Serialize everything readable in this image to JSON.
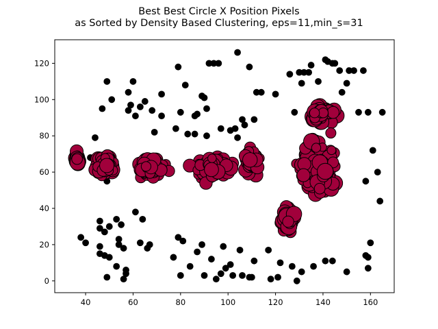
{
  "chart_data": {
    "type": "scatter",
    "title": "Best Best Circle X Position Pixels",
    "subtitle": "as Sorted by Density Based Clustering, eps=11,min_s=31",
    "xlabel": "",
    "ylabel": "",
    "xlim": [
      27,
      170
    ],
    "ylim": [
      -6.5,
      133
    ],
    "xticks": [
      40,
      60,
      80,
      100,
      120,
      140,
      160
    ],
    "yticks": [
      0,
      20,
      40,
      60,
      80,
      100,
      120
    ],
    "grid": false,
    "colors": {
      "cluster": "#a1003b",
      "noise": "#000000",
      "edge": "#000000"
    },
    "series": [
      {
        "role": "noise",
        "points": [
          [
            38,
            24
          ],
          [
            40,
            21
          ],
          [
            42,
            68
          ],
          [
            43,
            60
          ],
          [
            44,
            79
          ],
          [
            45,
            62
          ],
          [
            46,
            29
          ],
          [
            46,
            33
          ],
          [
            46,
            19
          ],
          [
            46,
            15
          ],
          [
            47,
            95
          ],
          [
            48,
            14
          ],
          [
            48,
            27
          ],
          [
            49,
            2
          ],
          [
            49,
            110
          ],
          [
            49,
            55
          ],
          [
            50,
            13
          ],
          [
            50,
            30
          ],
          [
            51,
            100
          ],
          [
            53,
            34
          ],
          [
            53,
            8
          ],
          [
            54,
            20
          ],
          [
            54,
            23
          ],
          [
            55,
            31
          ],
          [
            56,
            1
          ],
          [
            56,
            18
          ],
          [
            57,
            4
          ],
          [
            57,
            6
          ],
          [
            58,
            94
          ],
          [
            58,
            104
          ],
          [
            59,
            97
          ],
          [
            60,
            110
          ],
          [
            61,
            91
          ],
          [
            61,
            38
          ],
          [
            63,
            21
          ],
          [
            63,
            96
          ],
          [
            64,
            34
          ],
          [
            65,
            99
          ],
          [
            66,
            18
          ],
          [
            67,
            20
          ],
          [
            68,
            94
          ],
          [
            69,
            82
          ],
          [
            72,
            91
          ],
          [
            72,
            103
          ],
          [
            77,
            13
          ],
          [
            78,
            84
          ],
          [
            79,
            24
          ],
          [
            79,
            118
          ],
          [
            80,
            3
          ],
          [
            80,
            93
          ],
          [
            81,
            22
          ],
          [
            82,
            108
          ],
          [
            83,
            81
          ],
          [
            84,
            8
          ],
          [
            86,
            81
          ],
          [
            86,
            91
          ],
          [
            87,
            92
          ],
          [
            87,
            16
          ],
          [
            89,
            102
          ],
          [
            89,
            20
          ],
          [
            90,
            101
          ],
          [
            90,
            3
          ],
          [
            91,
            80
          ],
          [
            91,
            95
          ],
          [
            92,
            120
          ],
          [
            93,
            12
          ],
          [
            94,
            120
          ],
          [
            95,
            1
          ],
          [
            96,
            120
          ],
          [
            97,
            84
          ],
          [
            97,
            4
          ],
          [
            98,
            19
          ],
          [
            99,
            7
          ],
          [
            100,
            60
          ],
          [
            101,
            9
          ],
          [
            101,
            83
          ],
          [
            102,
            3
          ],
          [
            103,
            84
          ],
          [
            104,
            126
          ],
          [
            104,
            79
          ],
          [
            105,
            17
          ],
          [
            106,
            89
          ],
          [
            106,
            3
          ],
          [
            107,
            86
          ],
          [
            109,
            2
          ],
          [
            109,
            118
          ],
          [
            110,
            2
          ],
          [
            111,
            11
          ],
          [
            111,
            89
          ],
          [
            112,
            104
          ],
          [
            114,
            104
          ],
          [
            117,
            17
          ],
          [
            118,
            1
          ],
          [
            120,
            103
          ],
          [
            121,
            2
          ],
          [
            122,
            10
          ],
          [
            126,
            114
          ],
          [
            127,
            8
          ],
          [
            128,
            93
          ],
          [
            129,
            0
          ],
          [
            130,
            115
          ],
          [
            131,
            5
          ],
          [
            131,
            109
          ],
          [
            132,
            115
          ],
          [
            134,
            115
          ],
          [
            135,
            119
          ],
          [
            136,
            8
          ],
          [
            138,
            110
          ],
          [
            141,
            11
          ],
          [
            141,
            122
          ],
          [
            142,
            121
          ],
          [
            144,
            11
          ],
          [
            144,
            120
          ],
          [
            145,
            120
          ],
          [
            147,
            116
          ],
          [
            148,
            104
          ],
          [
            150,
            5
          ],
          [
            150,
            109
          ],
          [
            151,
            116
          ],
          [
            153,
            116
          ],
          [
            155,
            93
          ],
          [
            157,
            116
          ],
          [
            158,
            14
          ],
          [
            158,
            55
          ],
          [
            159,
            7
          ],
          [
            159,
            13
          ],
          [
            159,
            93
          ],
          [
            160,
            21
          ],
          [
            161,
            72
          ],
          [
            163,
            60
          ],
          [
            164,
            44
          ],
          [
            165,
            93
          ]
        ]
      }
    ]
  }
}
